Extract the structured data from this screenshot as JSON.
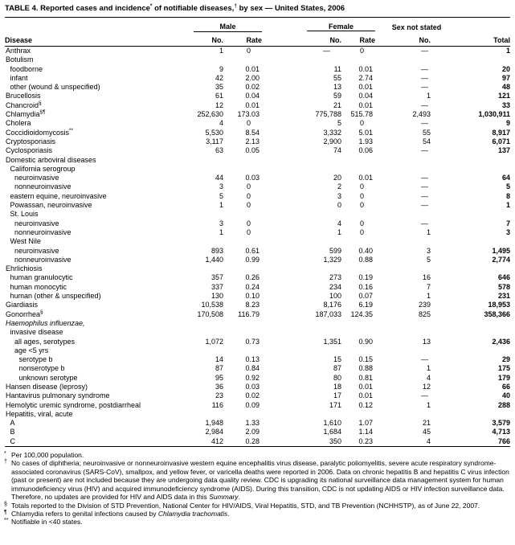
{
  "title": {
    "part1": "TABLE 4. Reported cases and incidence",
    "sup1": "*",
    "part2": " of notifiable diseases,",
    "sup2": "†",
    "part3": " by sex — United States, 2006"
  },
  "columns": {
    "disease": "Disease",
    "male": "Male",
    "female": "Female",
    "sex_not_stated": "Sex not stated",
    "no": "No.",
    "rate": "Rate",
    "total": "Total"
  },
  "colors": {
    "text": "#000000",
    "background": "#ffffff",
    "rule": "#000000"
  },
  "rows": [
    {
      "label": "Anthrax",
      "indent": 0,
      "m_no": "1",
      "m_rate": "0",
      "f_no": "—",
      "f_rate": "0",
      "s_no": "—",
      "total": "1"
    },
    {
      "label": "Botulism",
      "indent": 0
    },
    {
      "label": "foodborne",
      "indent": 1,
      "m_no": "9",
      "m_rate": "0.01",
      "f_no": "11",
      "f_rate": "0.01",
      "s_no": "—",
      "total": "20"
    },
    {
      "label": "infant",
      "indent": 1,
      "m_no": "42",
      "m_rate": "2.00",
      "f_no": "55",
      "f_rate": "2.74",
      "s_no": "—",
      "total": "97"
    },
    {
      "label": "other (wound & unspecified)",
      "indent": 1,
      "m_no": "35",
      "m_rate": "0.02",
      "f_no": "13",
      "f_rate": "0.01",
      "s_no": "—",
      "total": "48"
    },
    {
      "label": "Brucellosis",
      "indent": 0,
      "m_no": "61",
      "m_rate": "0.04",
      "f_no": "59",
      "f_rate": "0.04",
      "s_no": "1",
      "total": "121"
    },
    {
      "label": "Chancroid",
      "sup": "§",
      "indent": 0,
      "m_no": "12",
      "m_rate": "0.01",
      "f_no": "21",
      "f_rate": "0.01",
      "s_no": "—",
      "total": "33"
    },
    {
      "label": "Chlamydia",
      "sup": "§¶",
      "indent": 0,
      "m_no": "252,630",
      "m_rate": "173.03",
      "f_no": "775,788",
      "f_rate": "515.78",
      "s_no": "2,493",
      "total": "1,030,911"
    },
    {
      "label": "Cholera",
      "indent": 0,
      "m_no": "4",
      "m_rate": "0",
      "f_no": "5",
      "f_rate": "0",
      "s_no": "—",
      "total": "9"
    },
    {
      "label": "Coccidioidomycosis",
      "sup": "**",
      "indent": 0,
      "m_no": "5,530",
      "m_rate": "8.54",
      "f_no": "3,332",
      "f_rate": "5.01",
      "s_no": "55",
      "total": "8,917"
    },
    {
      "label": "Cryptosporiasis",
      "indent": 0,
      "m_no": "3,117",
      "m_rate": "2.13",
      "f_no": "2,900",
      "f_rate": "1.93",
      "s_no": "54",
      "total": "6,071"
    },
    {
      "label": "Cyclosporiasis",
      "indent": 0,
      "m_no": "63",
      "m_rate": "0.05",
      "f_no": "74",
      "f_rate": "0.06",
      "s_no": "—",
      "total": "137"
    },
    {
      "label": "Domestic arboviral diseases",
      "indent": 0
    },
    {
      "label": "California serogroup",
      "indent": 1
    },
    {
      "label": "neuroinvasive",
      "indent": 2,
      "m_no": "44",
      "m_rate": "0.03",
      "f_no": "20",
      "f_rate": "0.01",
      "s_no": "—",
      "total": "64"
    },
    {
      "label": "nonneuroinvasive",
      "indent": 2,
      "m_no": "3",
      "m_rate": "0",
      "f_no": "2",
      "f_rate": "0",
      "s_no": "—",
      "total": "5"
    },
    {
      "label": "eastern equine, neuroinvasive",
      "indent": 1,
      "m_no": "5",
      "m_rate": "0",
      "f_no": "3",
      "f_rate": "0",
      "s_no": "—",
      "total": "8"
    },
    {
      "label": "Powassan, neuroinvasive",
      "indent": 1,
      "m_no": "1",
      "m_rate": "0",
      "f_no": "0",
      "f_rate": "0",
      "s_no": "—",
      "total": "1"
    },
    {
      "label": "St. Louis",
      "indent": 1
    },
    {
      "label": "neuroinvasive",
      "indent": 2,
      "m_no": "3",
      "m_rate": "0",
      "f_no": "4",
      "f_rate": "0",
      "s_no": "—",
      "total": "7"
    },
    {
      "label": "nonneuroinvasive",
      "indent": 2,
      "m_no": "1",
      "m_rate": "0",
      "f_no": "1",
      "f_rate": "0",
      "s_no": "1",
      "total": "3"
    },
    {
      "label": "West Nile",
      "indent": 1
    },
    {
      "label": "neuroinvasive",
      "indent": 2,
      "m_no": "893",
      "m_rate": "0.61",
      "f_no": "599",
      "f_rate": "0.40",
      "s_no": "3",
      "total": "1,495"
    },
    {
      "label": "nonneuroinvasive",
      "indent": 2,
      "m_no": "1,440",
      "m_rate": "0.99",
      "f_no": "1,329",
      "f_rate": "0.88",
      "s_no": "5",
      "total": "2,774"
    },
    {
      "label": "Ehrlichiosis",
      "indent": 0
    },
    {
      "label": "human granulocytic",
      "indent": 1,
      "m_no": "357",
      "m_rate": "0.26",
      "f_no": "273",
      "f_rate": "0.19",
      "s_no": "16",
      "total": "646"
    },
    {
      "label": "human monocytic",
      "indent": 1,
      "m_no": "337",
      "m_rate": "0.24",
      "f_no": "234",
      "f_rate": "0.16",
      "s_no": "7",
      "total": "578"
    },
    {
      "label": "human (other & unspecified)",
      "indent": 1,
      "m_no": "130",
      "m_rate": "0.10",
      "f_no": "100",
      "f_rate": "0.07",
      "s_no": "1",
      "total": "231"
    },
    {
      "label": "Giardiasis",
      "indent": 0,
      "m_no": "10,538",
      "m_rate": "8.23",
      "f_no": "8,176",
      "f_rate": "6.19",
      "s_no": "239",
      "total": "18,953"
    },
    {
      "label": "Gonorrhea",
      "sup": "§",
      "indent": 0,
      "m_no": "170,508",
      "m_rate": "116.79",
      "f_no": "187,033",
      "f_rate": "124.35",
      "s_no": "825",
      "total": "358,366"
    },
    {
      "label": "Haemophilus influenzae,",
      "indent": 0,
      "italic": true
    },
    {
      "label": "invasive disease",
      "indent": 1
    },
    {
      "label": "all ages, serotypes",
      "indent": 2,
      "m_no": "1,072",
      "m_rate": "0.73",
      "f_no": "1,351",
      "f_rate": "0.90",
      "s_no": "13",
      "total": "2,436"
    },
    {
      "label": "age <5 yrs",
      "indent": 2
    },
    {
      "label": "serotype b",
      "indent": 3,
      "m_no": "14",
      "m_rate": "0.13",
      "f_no": "15",
      "f_rate": "0.15",
      "s_no": "—",
      "total": "29"
    },
    {
      "label": "nonserotype b",
      "indent": 3,
      "m_no": "87",
      "m_rate": "0.84",
      "f_no": "87",
      "f_rate": "0.88",
      "s_no": "1",
      "total": "175"
    },
    {
      "label": "unknown serotype",
      "indent": 3,
      "m_no": "95",
      "m_rate": "0.92",
      "f_no": "80",
      "f_rate": "0.81",
      "s_no": "4",
      "total": "179"
    },
    {
      "label": "Hansen disease (leprosy)",
      "indent": 0,
      "m_no": "36",
      "m_rate": "0.03",
      "f_no": "18",
      "f_rate": "0.01",
      "s_no": "12",
      "total": "66"
    },
    {
      "label": "Hantavirus pulmonary syndrome",
      "indent": 0,
      "m_no": "23",
      "m_rate": "0.02",
      "f_no": "17",
      "f_rate": "0.01",
      "s_no": "—",
      "total": "40"
    },
    {
      "label": "Hemolytic uremic syndrome, postdiarrheal",
      "indent": 0,
      "m_no": "116",
      "m_rate": "0.09",
      "f_no": "171",
      "f_rate": "0.12",
      "s_no": "1",
      "total": "288"
    },
    {
      "label": "Hepatitis, viral, acute",
      "indent": 0
    },
    {
      "label": "A",
      "indent": 1,
      "m_no": "1,948",
      "m_rate": "1.33",
      "f_no": "1,610",
      "f_rate": "1.07",
      "s_no": "21",
      "total": "3,579"
    },
    {
      "label": "B",
      "indent": 1,
      "m_no": "2,984",
      "m_rate": "2.09",
      "f_no": "1,684",
      "f_rate": "1.14",
      "s_no": "45",
      "total": "4,713"
    },
    {
      "label": "C",
      "indent": 1,
      "m_no": "412",
      "m_rate": "0.28",
      "f_no": "350",
      "f_rate": "0.23",
      "s_no": "4",
      "total": "766"
    }
  ],
  "footnotes": [
    {
      "marker": "*",
      "segments": [
        {
          "text": "Per 100,000 population."
        }
      ]
    },
    {
      "marker": "†",
      "segments": [
        {
          "text": "No cases of diphtheria; neuroinvasive or nonneuroinvasive western equine encephalitis virus disease, paralytic poliomyelitis, severe acute respiratory syndrome-associated coronavirus (SARS-CoV), smallpox, and yellow fever, or varicella deaths were reported in 2006. Data on chronic hepatitis B and hepatitis C virus infection (past or present) are not included because they are undergoing data quality review. CDC is upgrading its national surveillance data management system for human immunodeficiency virus (HIV) and acquired immunodeficiency syndrome (AIDS). During this transition, CDC is not updating AIDS or HIV infection surveillance data. Therefore, no updates are provided for HIV and AIDS data in this "
        },
        {
          "text": "Summary",
          "italic": true
        },
        {
          "text": "."
        }
      ]
    },
    {
      "marker": "§",
      "segments": [
        {
          "text": "Totals reported to the Division of STD Prevention, National Center for HIV/AIDS, Viral Hepatitis, STD, and TB Prevention (NCHHSTP), as of June 22, 2007."
        }
      ]
    },
    {
      "marker": "¶",
      "segments": [
        {
          "text": "Chlamydia refers to genital infections caused by "
        },
        {
          "text": "Chlamydia trachomatis",
          "italic": true
        },
        {
          "text": "."
        }
      ]
    },
    {
      "marker": "**",
      "segments": [
        {
          "text": "Notifiable in <40 states."
        }
      ]
    }
  ]
}
